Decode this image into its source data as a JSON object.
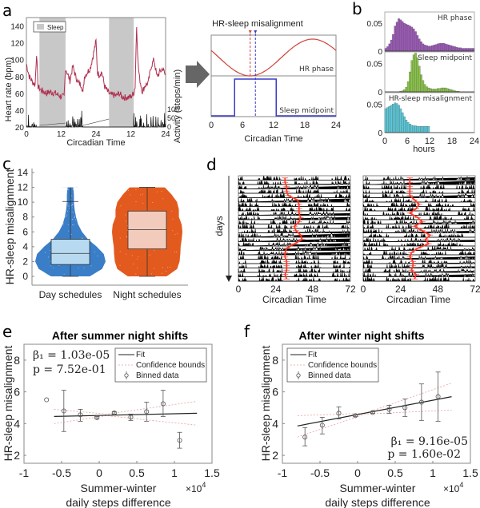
{
  "figure": {
    "panel_letters": [
      "a",
      "b",
      "c",
      "d",
      "e",
      "f"
    ]
  },
  "chart_data": [
    {
      "panel": "a-left",
      "type": "line",
      "xlabel": "Circadian Time",
      "ylabel": "Heart rate (bpm)",
      "ylabel_right": "Activity (steps/min)",
      "x_ticks": [
        "0",
        "12",
        "24",
        "12",
        "24"
      ],
      "y_ticks": [
        "20",
        "40",
        "60",
        "80",
        "100",
        "120",
        "140"
      ],
      "y_right_ticks": [
        "0",
        "50",
        "100"
      ],
      "ylim": [
        20,
        150
      ],
      "legend": [
        "Sleep"
      ],
      "sleep_intervals": [
        [
          4.5,
          13.5
        ],
        [
          28.5,
          37.0
        ]
      ],
      "hr_series": {
        "name": "Heart rate",
        "x": [
          0,
          1,
          2,
          3,
          3.5,
          4,
          5,
          6,
          7,
          8,
          9,
          10,
          11,
          12,
          13,
          13.5,
          14,
          15,
          16,
          17,
          18,
          19,
          19.5,
          20,
          22,
          23,
          24,
          24.5,
          25,
          26,
          27,
          28,
          29,
          30,
          31,
          32,
          33,
          34,
          35,
          36,
          37,
          37.5,
          38,
          38.5,
          39,
          40,
          41,
          42,
          43,
          44,
          45,
          46,
          47,
          48
        ],
        "y": [
          95,
          80,
          74,
          70,
          108,
          68,
          64,
          62,
          60,
          62,
          61,
          60,
          58,
          56,
          56,
          90,
          85,
          75,
          92,
          80,
          72,
          70,
          60,
          80,
          90,
          105,
          122,
          85,
          82,
          85,
          68,
          62,
          58,
          58,
          57,
          60,
          56,
          55,
          55,
          56,
          60,
          68,
          140,
          95,
          78,
          62,
          70,
          72,
          92,
          100,
          80,
          85,
          90,
          80
        ]
      },
      "activity_series": {
        "name": "Activity",
        "note": "spiky black activity trace, max ~100 steps/min"
      }
    },
    {
      "panel": "a-right",
      "type": "line",
      "title": "HR-sleep misalignment",
      "xlabel": "Circadian Time",
      "x_ticks": [
        "0",
        "6",
        "12",
        "18",
        "24"
      ],
      "xlim": [
        0,
        24
      ],
      "hr_phase": {
        "label": "HR phase",
        "min_at": 7.5,
        "max_at": 19.5
      },
      "sleep_midpoint": {
        "label": "Sleep midpoint",
        "onset": 4.5,
        "offset": 12.5,
        "midpoint": 8.5
      },
      "markers": {
        "hr_phase_color": "#d0453c",
        "sleep_midpoint_color": "#3a3ac8"
      }
    },
    {
      "panel": "b",
      "type": "bar",
      "xlabel": "hours",
      "x_ticks": [
        "0",
        "6",
        "12",
        "18",
        "24"
      ],
      "y_ticks": [
        "0",
        "0.05"
      ],
      "series": [
        {
          "name": "HR phase",
          "color": "#9b59b6",
          "bins": [
            0.005,
            0.008,
            0.013,
            0.02,
            0.03,
            0.045,
            0.052,
            0.058,
            0.056,
            0.053,
            0.05,
            0.048,
            0.047,
            0.045,
            0.043,
            0.04,
            0.035,
            0.028,
            0.022,
            0.017,
            0.013,
            0.011,
            0.01,
            0.009,
            0.009,
            0.01,
            0.011,
            0.012,
            0.013,
            0.014,
            0.014,
            0.014,
            0.013,
            0.012,
            0.011,
            0.01,
            0.009,
            0.008,
            0.007,
            0.006,
            0.006,
            0.005,
            0.005,
            0.005,
            0.005,
            0.005,
            0.005,
            0.005
          ]
        },
        {
          "name": "Sleep midpoint",
          "color": "#8bc34a",
          "bins": [
            0,
            0,
            0,
            0,
            0,
            0,
            0,
            0,
            0.001,
            0.002,
            0.004,
            0.008,
            0.018,
            0.035,
            0.055,
            0.065,
            0.068,
            0.06,
            0.045,
            0.03,
            0.02,
            0.013,
            0.009,
            0.007,
            0.006,
            0.005,
            0.005,
            0.005,
            0.006,
            0.006,
            0.007,
            0.007,
            0.007,
            0.006,
            0.005,
            0.004,
            0.003,
            0.002,
            0.001,
            0.001,
            0,
            0,
            0,
            0,
            0,
            0,
            0,
            0
          ]
        },
        {
          "name": "HR-sleep misalignment",
          "color": "#5bc8d8",
          "bins": [
            0.042,
            0.044,
            0.046,
            0.048,
            0.05,
            0.052,
            0.051,
            0.048,
            0.042,
            0.035,
            0.028,
            0.022,
            0.018,
            0.015,
            0.013,
            0.012,
            0.012,
            0.011,
            0.011,
            0.011,
            0.011,
            0.011,
            0.011,
            0.011,
            0,
            0,
            0,
            0,
            0,
            0,
            0,
            0,
            0,
            0,
            0,
            0,
            0,
            0,
            0,
            0,
            0,
            0,
            0,
            0,
            0,
            0,
            0,
            0
          ]
        }
      ]
    },
    {
      "panel": "c",
      "type": "violin",
      "ylabel": "HR-sleep misalignment",
      "y_ticks": [
        "0",
        "2",
        "4",
        "6",
        "8",
        "10",
        "12",
        "14"
      ],
      "ylim": [
        0,
        14
      ],
      "categories": [
        "Day schedules",
        "Night schedules"
      ],
      "series": [
        {
          "name": "Day schedules",
          "color": "#3a7ec8",
          "box_color": "#b8daf0",
          "q1": 1.6,
          "median": 3.1,
          "q3": 5.0,
          "whisker_low": 0,
          "whisker_high": 10.1,
          "max": 12,
          "density": [
            [
              0,
              0.55
            ],
            [
              1,
              0.9
            ],
            [
              2,
              1.0
            ],
            [
              3,
              0.95
            ],
            [
              4,
              0.75
            ],
            [
              5,
              0.5
            ],
            [
              6,
              0.33
            ],
            [
              7,
              0.22
            ],
            [
              8,
              0.16
            ],
            [
              9,
              0.12
            ],
            [
              10,
              0.1
            ],
            [
              11,
              0.1
            ],
            [
              12,
              0.08
            ]
          ]
        },
        {
          "name": "Night schedules",
          "color": "#e35a1e",
          "box_color": "#f2cbbd",
          "q1": 3.7,
          "median": 6.3,
          "q3": 8.8,
          "whisker_low": 0,
          "whisker_high": 12,
          "max": 12,
          "density": [
            [
              0,
              0.55
            ],
            [
              1,
              0.85
            ],
            [
              2,
              0.92
            ],
            [
              3,
              0.94
            ],
            [
              4,
              0.95
            ],
            [
              5,
              0.98
            ],
            [
              6,
              1.0
            ],
            [
              7,
              0.98
            ],
            [
              8,
              0.9
            ],
            [
              9,
              0.9
            ],
            [
              10,
              0.85
            ],
            [
              11,
              0.7
            ],
            [
              12,
              0.5
            ]
          ]
        }
      ]
    },
    {
      "panel": "d",
      "type": "raster",
      "ylabel": "days",
      "xlabel": "Circadian Time",
      "x_ticks": [
        "0",
        "24",
        "48",
        "72"
      ],
      "rows": 24,
      "left_phase_track": [
        30,
        30,
        31,
        31,
        32,
        38,
        39,
        39,
        39,
        40,
        39,
        36,
        37,
        40,
        41,
        36,
        31,
        30,
        30,
        31,
        31,
        31,
        30,
        31
      ],
      "right_phase_track": [
        30,
        30,
        30,
        30,
        30,
        33,
        36,
        34,
        30,
        35,
        38,
        33,
        38,
        43,
        40,
        42,
        35,
        31,
        30,
        32,
        32,
        31,
        34,
        33
      ]
    },
    {
      "panel": "e",
      "type": "scatter",
      "title": "After summer night shifts",
      "xlabel": "Summer-winter daily steps difference",
      "xlabel_line1": "Summer-winter",
      "xlabel_line2": "daily steps difference",
      "x_multiplier": "×10",
      "x_multiplier_exp": "4",
      "ylabel": "HR-sleep misalignment",
      "x_ticks": [
        "-1",
        "-0.5",
        "0",
        "0.5",
        "1",
        "1.5"
      ],
      "y_ticks": [
        "2",
        "4",
        "6",
        "8"
      ],
      "xlim": [
        -1,
        1.5
      ],
      "ylim": [
        1.5,
        9
      ],
      "stat_beta": "β₁ = 1.03e-05",
      "stat_p": "p = 7.52e-01",
      "legend": [
        "Fit",
        "Confidence bounds",
        "Binned data"
      ],
      "fit": {
        "x": [
          -0.6,
          1.3
        ],
        "y": [
          4.45,
          4.65
        ]
      },
      "conf_upper": {
        "x": [
          -0.6,
          0.1,
          1.3
        ],
        "y": [
          4.9,
          4.6,
          5.4
        ]
      },
      "conf_lower": {
        "x": [
          -0.6,
          0.1,
          1.3
        ],
        "y": [
          4.0,
          4.5,
          3.9
        ]
      },
      "points": [
        {
          "x": -0.7,
          "y": 5.5,
          "lo": 5.5,
          "hi": 5.5
        },
        {
          "x": -0.47,
          "y": 4.8,
          "lo": 3.5,
          "hi": 6.1
        },
        {
          "x": -0.25,
          "y": 4.55,
          "lo": 4.15,
          "hi": 4.9
        },
        {
          "x": -0.03,
          "y": 4.38,
          "lo": 4.3,
          "hi": 4.45
        },
        {
          "x": 0.2,
          "y": 4.67,
          "lo": 4.6,
          "hi": 4.75
        },
        {
          "x": 0.42,
          "y": 4.4,
          "lo": 4.2,
          "hi": 4.6
        },
        {
          "x": 0.63,
          "y": 4.75,
          "lo": 4.15,
          "hi": 5.35
        },
        {
          "x": 0.85,
          "y": 5.25,
          "lo": 4.45,
          "hi": 6.1
        },
        {
          "x": 1.07,
          "y": 2.95,
          "lo": 2.45,
          "hi": 3.45
        }
      ]
    },
    {
      "panel": "f",
      "type": "scatter",
      "title": "After winter night shifts",
      "xlabel": "Summer-winter daily steps difference",
      "xlabel_line1": "Summer-winter",
      "xlabel_line2": "daily steps difference",
      "x_multiplier": "×10",
      "x_multiplier_exp": "4",
      "ylabel": "HR-sleep misalignment",
      "x_ticks": [
        "-1",
        "-0.5",
        "0",
        "0.5",
        "1",
        "1.5"
      ],
      "y_ticks": [
        "2",
        "4",
        "6",
        "8"
      ],
      "xlim": [
        -1,
        1.5
      ],
      "ylim": [
        1.5,
        9
      ],
      "stat_beta": "β₁ = 9.16e-05",
      "stat_p": "p = 1.60e-02",
      "legend": [
        "Fit",
        "Confidence bounds",
        "Binned data"
      ],
      "fit": {
        "x": [
          -0.8,
          1.25
        ],
        "y": [
          3.85,
          5.7
        ]
      },
      "conf_upper": {
        "x": [
          -0.8,
          0.1,
          1.25
        ],
        "y": [
          4.5,
          4.65,
          6.55
        ]
      },
      "conf_lower": {
        "x": [
          -0.8,
          0.1,
          1.25
        ],
        "y": [
          3.15,
          4.6,
          4.85
        ]
      },
      "points": [
        {
          "x": -0.7,
          "y": 3.15,
          "lo": 2.6,
          "hi": 3.75
        },
        {
          "x": -0.47,
          "y": 3.9,
          "lo": 3.35,
          "hi": 4.4
        },
        {
          "x": -0.25,
          "y": 4.65,
          "lo": 4.3,
          "hi": 5.05
        },
        {
          "x": -0.03,
          "y": 4.5,
          "lo": 4.45,
          "hi": 4.55
        },
        {
          "x": 0.2,
          "y": 4.7,
          "lo": 4.65,
          "hi": 4.75
        },
        {
          "x": 0.42,
          "y": 4.9,
          "lo": 4.65,
          "hi": 5.15
        },
        {
          "x": 0.63,
          "y": 5.0,
          "lo": 4.45,
          "hi": 5.55
        },
        {
          "x": 0.85,
          "y": 5.35,
          "lo": 4.2,
          "hi": 6.5
        },
        {
          "x": 1.07,
          "y": 5.7,
          "lo": 4.15,
          "hi": 7.25
        }
      ]
    }
  ]
}
